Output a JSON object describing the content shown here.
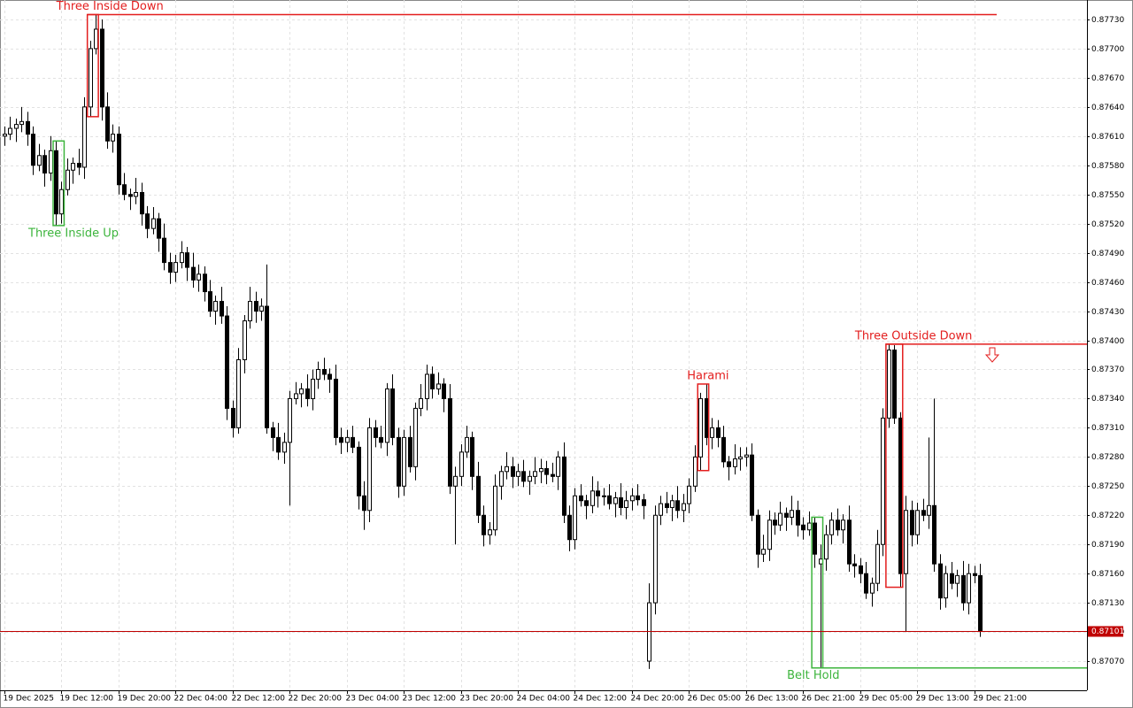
{
  "chart_data": {
    "type": "candlestick",
    "categories": [
      "19 Dec 2025",
      null,
      null,
      null,
      null,
      null,
      null,
      null,
      null,
      null,
      "19 Dec 12:00",
      null,
      null,
      null,
      null,
      null,
      null,
      null,
      null,
      null,
      "19 Dec 20:00",
      null,
      null,
      null,
      null,
      null,
      null,
      null,
      null,
      null,
      "22 Dec 04:00",
      null,
      null,
      null,
      null,
      null,
      null,
      null,
      null,
      null,
      "22 Dec 12:00",
      null,
      null,
      null,
      null,
      null,
      null,
      null,
      null,
      null,
      "22 Dec 20:00",
      null,
      null,
      null,
      null,
      null,
      null,
      null,
      null,
      null,
      "23 Dec 04:00",
      null,
      null,
      null,
      null,
      null,
      null,
      null,
      null,
      null,
      "23 Dec 12:00",
      null,
      null,
      null,
      null,
      null,
      null,
      null,
      null,
      null,
      "23 Dec 20:00",
      null,
      null,
      null,
      null,
      null,
      null,
      null,
      null,
      null,
      "24 Dec 04:00",
      null,
      null,
      null,
      null,
      null,
      null,
      null,
      null,
      null,
      "24 Dec 12:00",
      null,
      null,
      null,
      null,
      null,
      null,
      null,
      null,
      null,
      "24 Dec 20:00",
      null,
      null,
      null,
      null,
      null,
      null,
      null,
      null,
      null,
      "26 Dec 05:00",
      null,
      null,
      null,
      null,
      null,
      null,
      null,
      null,
      null,
      "26 Dec 13:00",
      null,
      null,
      null,
      null,
      null,
      null,
      null,
      null,
      null,
      "26 Dec 21:00",
      null,
      null,
      null,
      null,
      null,
      null,
      null,
      null,
      null,
      "29 Dec 05:00",
      null,
      null,
      null,
      null,
      null,
      null,
      null,
      null,
      null,
      "29 Dec 13:00",
      null,
      null,
      null,
      null,
      null,
      null,
      null,
      null,
      null,
      "29 Dec 21:00",
      null
    ],
    "open": [
      0.8761,
      0.87612,
      0.87618,
      0.87622,
      0.87625,
      0.87612,
      0.8758,
      0.8759,
      0.87572,
      0.87595,
      0.8753,
      0.87555,
      0.87575,
      0.87582,
      0.87578,
      0.8764,
      0.877,
      0.8772,
      0.8764,
      0.87605,
      0.87612,
      0.8756,
      0.8755,
      0.87548,
      0.87552,
      0.8753,
      0.87515,
      0.87525,
      0.87505,
      0.8748,
      0.8747,
      0.8748,
      0.8749,
      0.87475,
      0.87462,
      0.87468,
      0.8745,
      0.8743,
      0.8744,
      0.87425,
      0.8733,
      0.8731,
      0.8738,
      0.8742,
      0.8744,
      0.8743,
      0.87435,
      0.8731,
      0.873,
      0.87285,
      0.87295,
      0.8734,
      0.87345,
      0.8735,
      0.8734,
      0.8736,
      0.8737,
      0.87365,
      0.8736,
      0.873,
      0.87295,
      0.873,
      0.8729,
      0.8724,
      0.87225,
      0.8731,
      0.873,
      0.87295,
      0.8735,
      0.873,
      0.8725,
      0.873,
      0.8727,
      0.8733,
      0.8734,
      0.87365,
      0.8735,
      0.87355,
      0.8734,
      0.8725,
      0.8726,
      0.87285,
      0.873,
      0.8726,
      0.8722,
      0.872,
      0.87205,
      0.8725,
      0.87265,
      0.8727,
      0.8726,
      0.87265,
      0.87255,
      0.8726,
      0.87265,
      0.87268,
      0.87262,
      0.8726,
      0.8728,
      0.8722,
      0.87195,
      0.8724,
      0.87235,
      0.8723,
      0.87245,
      0.8724,
      0.8724,
      0.87232,
      0.87238,
      0.87228,
      0.87235,
      0.8724,
      0.87236,
      0.8707,
      0.8713,
      0.8722,
      0.87232,
      0.87228,
      0.87235,
      0.87225,
      0.87232,
      0.8725,
      0.8728,
      0.8734,
      0.873,
      0.8731,
      0.873,
      0.87275,
      0.8727,
      0.87278,
      0.8728,
      0.87282,
      0.8722,
      0.8718,
      0.87185,
      0.87215,
      0.8721,
      0.87222,
      0.87218,
      0.87225,
      0.8721,
      0.87205,
      0.87212,
      0.8717,
      0.87175,
      0.872,
      0.87215,
      0.87205,
      0.87215,
      0.8717,
      0.87168,
      0.8716,
      0.8714,
      0.8715,
      0.8719,
      0.8732,
      0.8739,
      0.8732,
      0.8716,
      0.87225,
      0.872,
      0.87225,
      0.8722,
      0.8723,
      0.8717,
      0.87135,
      0.8716,
      0.8715,
      0.87158,
      0.8713,
      0.8716,
      0.87158
    ],
    "high": [
      0.8762,
      0.8763,
      0.87628,
      0.8764,
      0.87635,
      0.8762,
      0.87602,
      0.87596,
      0.8761,
      0.87605,
      0.87563,
      0.87587,
      0.87588,
      0.87597,
      0.8765,
      0.87708,
      0.87735,
      0.8773,
      0.87655,
      0.87622,
      0.8762,
      0.87572,
      0.87556,
      0.87567,
      0.87562,
      0.87538,
      0.87537,
      0.87531,
      0.8752,
      0.8749,
      0.87488,
      0.87502,
      0.87496,
      0.8749,
      0.87478,
      0.87476,
      0.87462,
      0.87446,
      0.87455,
      0.87435,
      0.87338,
      0.87392,
      0.87426,
      0.87455,
      0.8745,
      0.87443,
      0.87478,
      0.87316,
      0.87315,
      0.87305,
      0.87348,
      0.87357,
      0.87356,
      0.87365,
      0.8737,
      0.87378,
      0.87382,
      0.87371,
      0.87375,
      0.8731,
      0.87308,
      0.87312,
      0.87296,
      0.87255,
      0.8732,
      0.87318,
      0.87312,
      0.87356,
      0.87365,
      0.8731,
      0.87308,
      0.87312,
      0.87336,
      0.87355,
      0.87375,
      0.87373,
      0.87367,
      0.87361,
      0.87355,
      0.8727,
      0.87293,
      0.87312,
      0.87306,
      0.87275,
      0.8723,
      0.87213,
      0.87262,
      0.87271,
      0.87285,
      0.8728,
      0.87273,
      0.87277,
      0.87266,
      0.8728,
      0.87278,
      0.87276,
      0.87274,
      0.87286,
      0.87295,
      0.8723,
      0.87248,
      0.87252,
      0.87241,
      0.8726,
      0.87255,
      0.87248,
      0.87252,
      0.87244,
      0.87253,
      0.87245,
      0.87248,
      0.87252,
      0.87242,
      0.8715,
      0.8723,
      0.8724,
      0.87244,
      0.87241,
      0.8725,
      0.87242,
      0.87258,
      0.87292,
      0.87346,
      0.87355,
      0.8732,
      0.87318,
      0.87312,
      0.87281,
      0.87293,
      0.8729,
      0.8729,
      0.87294,
      0.87226,
      0.872,
      0.87225,
      0.87223,
      0.87234,
      0.87228,
      0.8724,
      0.87235,
      0.87218,
      0.87224,
      0.87218,
      0.8719,
      0.8721,
      0.87223,
      0.87227,
      0.87221,
      0.8723,
      0.8718,
      0.87176,
      0.87172,
      0.87156,
      0.87205,
      0.8733,
      0.87396,
      0.87395,
      0.87326,
      0.8724,
      0.87235,
      0.87233,
      0.87237,
      0.873,
      0.8734,
      0.8718,
      0.87168,
      0.87172,
      0.87164,
      0.87173,
      0.8717,
      0.87168,
      0.8717
    ],
    "low": [
      0.876,
      0.87606,
      0.87604,
      0.87614,
      0.876,
      0.8757,
      0.87574,
      0.87558,
      0.87564,
      0.87518,
      0.8752,
      0.87549,
      0.87561,
      0.8757,
      0.87566,
      0.8763,
      0.87694,
      0.87626,
      0.87597,
      0.87593,
      0.8755,
      0.87544,
      0.87534,
      0.8754,
      0.87518,
      0.87505,
      0.87509,
      0.87491,
      0.87472,
      0.87458,
      0.8746,
      0.87474,
      0.87461,
      0.87454,
      0.8745,
      0.8744,
      0.87424,
      0.87416,
      0.87417,
      0.87318,
      0.873,
      0.87304,
      0.87366,
      0.87412,
      0.87418,
      0.8742,
      0.87304,
      0.87286,
      0.87277,
      0.87273,
      0.8723,
      0.87334,
      0.87331,
      0.87332,
      0.87328,
      0.8735,
      0.87359,
      0.87346,
      0.87292,
      0.87283,
      0.87285,
      0.87284,
      0.87226,
      0.87205,
      0.87213,
      0.8729,
      0.87289,
      0.87281,
      0.87292,
      0.87238,
      0.8724,
      0.87264,
      0.87256,
      0.87322,
      0.87328,
      0.8734,
      0.87344,
      0.87326,
      0.87242,
      0.8719,
      0.8725,
      0.87279,
      0.87246,
      0.87212,
      0.87188,
      0.8719,
      0.87199,
      0.87236,
      0.87257,
      0.87248,
      0.8725,
      0.87249,
      0.87241,
      0.87252,
      0.87253,
      0.87252,
      0.87254,
      0.87246,
      0.87212,
      0.87183,
      0.87185,
      0.87229,
      0.87216,
      0.87222,
      0.87228,
      0.8723,
      0.87226,
      0.87218,
      0.8722,
      0.87216,
      0.87225,
      0.8723,
      0.87216,
      0.87062,
      0.87118,
      0.8721,
      0.87222,
      0.87214,
      0.87217,
      0.87213,
      0.87222,
      0.87244,
      0.87266,
      0.87292,
      0.87288,
      0.8729,
      0.87269,
      0.87256,
      0.87262,
      0.87266,
      0.8727,
      0.87214,
      0.87166,
      0.87172,
      0.87173,
      0.872,
      0.87204,
      0.87204,
      0.8721,
      0.87198,
      0.87195,
      0.87199,
      0.87166,
      0.87063,
      0.87163,
      0.8719,
      0.87199,
      0.87191,
      0.87162,
      0.87156,
      0.8715,
      0.87134,
      0.87126,
      0.87142,
      0.87178,
      0.8731,
      0.87314,
      0.87146,
      0.871,
      0.87188,
      0.8719,
      0.87214,
      0.87206,
      0.87162,
      0.87123,
      0.87125,
      0.87144,
      0.87136,
      0.87122,
      0.87118,
      0.8715,
      0.87095
    ],
    "close": [
      0.87612,
      0.87618,
      0.87622,
      0.87625,
      0.87612,
      0.8758,
      0.8759,
      0.87572,
      0.87595,
      0.8753,
      0.87555,
      0.87575,
      0.87582,
      0.87578,
      0.8764,
      0.877,
      0.8772,
      0.8764,
      0.87605,
      0.87612,
      0.8756,
      0.8755,
      0.87548,
      0.87552,
      0.8753,
      0.87515,
      0.87525,
      0.87505,
      0.8748,
      0.8747,
      0.8748,
      0.8749,
      0.87475,
      0.87462,
      0.87468,
      0.8745,
      0.8743,
      0.8744,
      0.87425,
      0.8733,
      0.8731,
      0.8738,
      0.8742,
      0.8744,
      0.8743,
      0.87435,
      0.8731,
      0.873,
      0.87285,
      0.87295,
      0.8734,
      0.87345,
      0.8735,
      0.8734,
      0.8736,
      0.8737,
      0.87365,
      0.8736,
      0.873,
      0.87295,
      0.873,
      0.8729,
      0.8724,
      0.87225,
      0.8731,
      0.873,
      0.87295,
      0.8735,
      0.873,
      0.8725,
      0.873,
      0.8727,
      0.8733,
      0.8734,
      0.87365,
      0.8735,
      0.87355,
      0.8734,
      0.8725,
      0.8726,
      0.87285,
      0.873,
      0.8726,
      0.8722,
      0.872,
      0.87205,
      0.8725,
      0.87265,
      0.8727,
      0.8726,
      0.87265,
      0.87255,
      0.8726,
      0.87265,
      0.87268,
      0.87262,
      0.8726,
      0.8728,
      0.8722,
      0.87195,
      0.8724,
      0.87235,
      0.8723,
      0.87245,
      0.8724,
      0.8724,
      0.87232,
      0.87238,
      0.87228,
      0.87235,
      0.8724,
      0.87236,
      0.8723,
      0.8713,
      0.8722,
      0.87232,
      0.87228,
      0.87235,
      0.87225,
      0.87232,
      0.8725,
      0.8728,
      0.8734,
      0.873,
      0.8731,
      0.873,
      0.87275,
      0.8727,
      0.87278,
      0.8728,
      0.87282,
      0.8722,
      0.8718,
      0.87185,
      0.87215,
      0.8721,
      0.87222,
      0.87218,
      0.87225,
      0.8721,
      0.87205,
      0.87212,
      0.8718,
      0.87175,
      0.872,
      0.87215,
      0.87205,
      0.87215,
      0.8717,
      0.87168,
      0.8716,
      0.8714,
      0.8715,
      0.8719,
      0.8732,
      0.8739,
      0.8732,
      0.8716,
      0.87225,
      0.872,
      0.87225,
      0.8722,
      0.8723,
      0.8717,
      0.87135,
      0.8716,
      0.8715,
      0.87158,
      0.8713,
      0.8716,
      0.87158,
      0.87101
    ],
    "ylim": [
      0.8704,
      0.8775
    ],
    "yticks": [
      {
        "value": 0.8707,
        "label": "0.87070"
      },
      {
        "value": 0.871,
        "label": "0.87100"
      },
      {
        "value": 0.8713,
        "label": "0.87130"
      },
      {
        "value": 0.8716,
        "label": "0.87160"
      },
      {
        "value": 0.8719,
        "label": "0.87190"
      },
      {
        "value": 0.8722,
        "label": "0.87220"
      },
      {
        "value": 0.8725,
        "label": "0.87250"
      },
      {
        "value": 0.8728,
        "label": "0.87280"
      },
      {
        "value": 0.8731,
        "label": "0.87310"
      },
      {
        "value": 0.8734,
        "label": "0.87340"
      },
      {
        "value": 0.8737,
        "label": "0.87370"
      },
      {
        "value": 0.874,
        "label": "0.87400"
      },
      {
        "value": 0.8743,
        "label": "0.87430"
      },
      {
        "value": 0.8746,
        "label": "0.87460"
      },
      {
        "value": 0.8749,
        "label": "0.87490"
      },
      {
        "value": 0.8752,
        "label": "0.87520"
      },
      {
        "value": 0.8755,
        "label": "0.87550"
      },
      {
        "value": 0.8758,
        "label": "0.87580"
      },
      {
        "value": 0.8761,
        "label": "0.87610"
      },
      {
        "value": 0.8764,
        "label": "0.87640"
      },
      {
        "value": 0.8767,
        "label": "0.87670"
      },
      {
        "value": 0.877,
        "label": "0.87700"
      },
      {
        "value": 0.8773,
        "label": "0.87730"
      }
    ],
    "grid": true,
    "up_color": "#ffffff",
    "down_color": "#000000",
    "price_line_color": "#c00000",
    "patterns": [
      {
        "label": "Three Inside Down",
        "color": "#e31e1e"
      },
      {
        "label": "Three Inside Up",
        "color": "#3cb43c"
      },
      {
        "label": "Harami",
        "color": "#e31e1e"
      },
      {
        "label": "Three Outside Down",
        "color": "#e31e1e"
      },
      {
        "label": "Belt Hold",
        "color": "#3cb43c"
      }
    ]
  }
}
